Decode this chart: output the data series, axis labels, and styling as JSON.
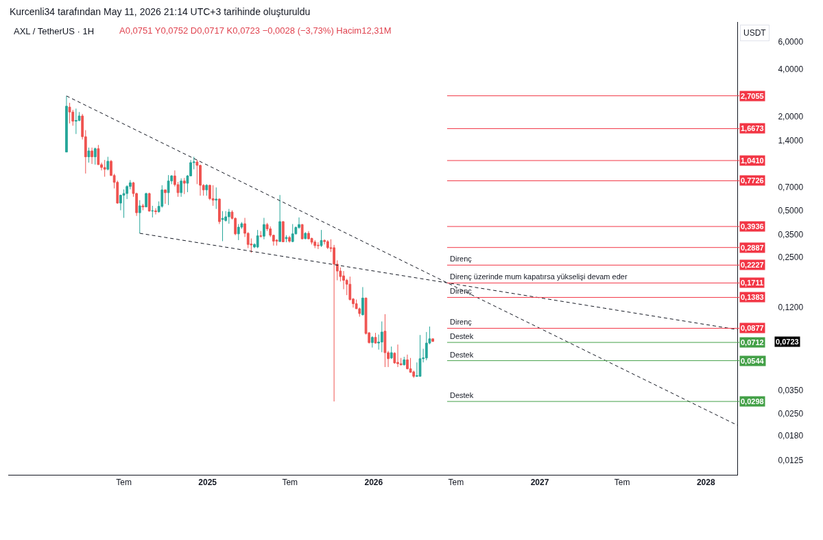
{
  "chart_data": {
    "type": "candlestick",
    "title": "AXL / TetherUS · 1H",
    "subtitle": "A0,0751 Y0,0752 D0,0717 K0,0723 −0,0028 (−3,73%) Hacim12,31M",
    "ylabel": "USDT",
    "x": [
      "2024-02-26",
      "2024-03-04",
      "2024-03-11",
      "2024-03-18",
      "2024-03-25",
      "2024-04-01",
      "2024-04-08",
      "2024-04-15",
      "2024-04-22",
      "2024-04-29",
      "2024-05-06",
      "2024-05-13",
      "2024-05-20",
      "2024-05-27",
      "2024-06-03",
      "2024-06-10",
      "2024-06-17",
      "2024-06-24",
      "2024-07-01",
      "2024-07-08",
      "2024-07-15",
      "2024-07-22",
      "2024-07-29",
      "2024-08-05",
      "2024-08-12",
      "2024-08-19",
      "2024-08-26",
      "2024-09-02",
      "2024-09-09",
      "2024-09-16",
      "2024-09-23",
      "2024-09-30",
      "2024-10-07",
      "2024-10-14",
      "2024-10-21",
      "2024-10-28",
      "2024-11-04",
      "2024-11-11",
      "2024-11-18",
      "2024-11-25",
      "2024-12-02",
      "2024-12-09",
      "2024-12-16",
      "2024-12-23",
      "2024-12-30",
      "2025-01-06",
      "2025-01-13",
      "2025-01-20",
      "2025-01-27",
      "2025-02-03",
      "2025-02-10",
      "2025-02-17",
      "2025-02-24",
      "2025-03-03",
      "2025-03-10",
      "2025-03-17",
      "2025-03-24",
      "2025-03-31",
      "2025-04-07",
      "2025-04-14",
      "2025-04-21",
      "2025-04-28",
      "2025-05-05",
      "2025-05-12",
      "2025-05-19",
      "2025-05-26",
      "2025-06-02",
      "2025-06-09",
      "2025-06-16",
      "2025-06-23",
      "2025-06-30",
      "2025-07-07",
      "2025-07-14",
      "2025-07-21",
      "2025-07-28",
      "2025-08-04",
      "2025-08-11",
      "2025-08-18",
      "2025-08-25",
      "2025-09-01",
      "2025-09-08",
      "2025-09-15",
      "2025-09-22",
      "2025-09-29",
      "2025-10-06",
      "2025-10-13",
      "2025-10-20",
      "2025-10-27",
      "2025-11-03",
      "2025-11-10",
      "2025-11-17",
      "2025-11-24",
      "2025-12-01",
      "2025-12-08",
      "2025-12-15",
      "2025-12-22",
      "2025-12-29",
      "2026-01-05",
      "2026-01-12",
      "2026-01-19",
      "2026-01-26",
      "2026-02-02",
      "2026-02-09",
      "2026-02-16",
      "2026-02-23",
      "2026-03-02",
      "2026-03-09",
      "2026-03-16",
      "2026-03-23",
      "2026-03-30",
      "2026-04-06",
      "2026-04-13",
      "2026-04-20",
      "2026-04-27",
      "2026-05-04",
      "2026-05-11"
    ],
    "ohlc": [
      [
        1.18,
        2.7,
        1.18,
        2.32
      ],
      [
        2.29,
        2.44,
        1.8,
        2.13
      ],
      [
        2.13,
        2.2,
        1.74,
        1.86
      ],
      [
        1.86,
        2.24,
        1.54,
        1.88
      ],
      [
        1.88,
        2.13,
        1.86,
        2.01
      ],
      [
        2.01,
        2.07,
        1.42,
        1.48
      ],
      [
        1.48,
        1.63,
        0.86,
        1.1
      ],
      [
        1.1,
        1.26,
        1.01,
        1.2
      ],
      [
        1.2,
        1.26,
        0.99,
        1.1
      ],
      [
        1.1,
        1.26,
        0.98,
        1.24
      ],
      [
        1.24,
        1.31,
        0.98,
        0.98
      ],
      [
        0.98,
        1.01,
        0.9,
        0.94
      ],
      [
        0.94,
        1.05,
        0.82,
        0.915
      ],
      [
        0.915,
        1.1,
        0.9,
        1.03
      ],
      [
        1.03,
        1.05,
        0.83,
        0.835
      ],
      [
        0.835,
        0.857,
        0.69,
        0.755
      ],
      [
        0.755,
        0.774,
        0.55,
        0.556
      ],
      [
        0.556,
        0.63,
        0.5,
        0.624
      ],
      [
        0.624,
        0.68,
        0.447,
        0.64
      ],
      [
        0.64,
        0.723,
        0.59,
        0.71
      ],
      [
        0.71,
        0.78,
        0.68,
        0.75
      ],
      [
        0.75,
        0.76,
        0.61,
        0.64
      ],
      [
        0.64,
        0.648,
        0.46,
        0.482
      ],
      [
        0.482,
        0.58,
        0.356,
        0.534
      ],
      [
        0.534,
        0.55,
        0.5,
        0.525
      ],
      [
        0.525,
        0.648,
        0.525,
        0.64
      ],
      [
        0.64,
        0.648,
        0.49,
        0.494
      ],
      [
        0.494,
        0.534,
        0.45,
        0.496
      ],
      [
        0.496,
        0.515,
        0.47,
        0.49
      ],
      [
        0.49,
        0.57,
        0.482,
        0.53
      ],
      [
        0.53,
        0.723,
        0.52,
        0.675
      ],
      [
        0.675,
        0.68,
        0.55,
        0.648
      ],
      [
        0.648,
        0.84,
        0.54,
        0.77
      ],
      [
        0.77,
        0.84,
        0.735,
        0.83
      ],
      [
        0.83,
        0.9,
        0.71,
        0.73
      ],
      [
        0.73,
        0.76,
        0.61,
        0.648
      ],
      [
        0.648,
        0.8,
        0.61,
        0.77
      ],
      [
        0.77,
        0.805,
        0.635,
        0.745
      ],
      [
        0.745,
        0.84,
        0.653,
        0.83
      ],
      [
        0.83,
        1.05,
        0.83,
        1.01
      ],
      [
        1.01,
        1.1,
        0.915,
        1.02
      ],
      [
        1.02,
        1.05,
        0.735,
        0.97
      ],
      [
        0.97,
        0.98,
        0.62,
        0.723
      ],
      [
        0.723,
        0.735,
        0.62,
        0.675
      ],
      [
        0.675,
        0.735,
        0.62,
        0.723
      ],
      [
        0.723,
        0.73,
        0.58,
        0.594
      ],
      [
        0.594,
        0.723,
        0.534,
        0.58
      ],
      [
        0.58,
        0.7,
        0.51,
        0.59
      ],
      [
        0.59,
        0.595,
        0.408,
        0.423
      ],
      [
        0.436,
        0.494,
        0.317,
        0.444
      ],
      [
        0.43,
        0.494,
        0.423,
        0.454
      ],
      [
        0.454,
        0.51,
        0.41,
        0.487
      ],
      [
        0.487,
        0.5,
        0.436,
        0.444
      ],
      [
        0.444,
        0.45,
        0.346,
        0.353
      ],
      [
        0.353,
        0.408,
        0.322,
        0.39
      ],
      [
        0.39,
        0.42,
        0.38,
        0.41
      ],
      [
        0.41,
        0.447,
        0.337,
        0.356
      ],
      [
        0.356,
        0.362,
        0.286,
        0.302
      ],
      [
        0.304,
        0.33,
        0.267,
        0.3
      ],
      [
        0.291,
        0.307,
        0.286,
        0.302
      ],
      [
        0.291,
        0.374,
        0.286,
        0.343
      ],
      [
        0.343,
        0.368,
        0.334,
        0.341
      ],
      [
        0.341,
        0.447,
        0.326,
        0.405
      ],
      [
        0.405,
        0.415,
        0.368,
        0.38
      ],
      [
        0.38,
        0.394,
        0.337,
        0.346
      ],
      [
        0.346,
        0.348,
        0.297,
        0.317
      ],
      [
        0.322,
        0.326,
        0.297,
        0.317
      ],
      [
        0.315,
        0.626,
        0.315,
        0.423
      ],
      [
        0.423,
        0.425,
        0.314,
        0.314
      ],
      [
        0.329,
        0.346,
        0.312,
        0.335
      ],
      [
        0.335,
        0.343,
        0.31,
        0.317
      ],
      [
        0.315,
        0.408,
        0.312,
        0.353
      ],
      [
        0.353,
        0.394,
        0.35,
        0.388
      ],
      [
        0.388,
        0.45,
        0.38,
        0.405
      ],
      [
        0.405,
        0.408,
        0.326,
        0.328
      ],
      [
        0.329,
        0.362,
        0.326,
        0.356
      ],
      [
        0.356,
        0.368,
        0.326,
        0.328
      ],
      [
        0.33,
        0.334,
        0.302,
        0.312
      ],
      [
        0.313,
        0.322,
        0.286,
        0.297
      ],
      [
        0.299,
        0.312,
        0.282,
        0.297
      ],
      [
        0.297,
        0.374,
        0.291,
        0.32
      ],
      [
        0.32,
        0.326,
        0.302,
        0.315
      ],
      [
        0.315,
        0.322,
        0.282,
        0.288
      ],
      [
        0.288,
        0.326,
        0.27,
        0.285
      ],
      [
        0.288,
        0.3,
        0.0298,
        0.226
      ],
      [
        0.226,
        0.239,
        0.178,
        0.204
      ],
      [
        0.204,
        0.215,
        0.175,
        0.188
      ],
      [
        0.19,
        0.204,
        0.156,
        0.178
      ],
      [
        0.178,
        0.182,
        0.143,
        0.168
      ],
      [
        0.168,
        0.188,
        0.132,
        0.134
      ],
      [
        0.135,
        0.137,
        0.119,
        0.126
      ],
      [
        0.126,
        0.134,
        0.117,
        0.117
      ],
      [
        0.117,
        0.119,
        0.104,
        0.109
      ],
      [
        0.107,
        0.161,
        0.106,
        0.137
      ],
      [
        0.137,
        0.138,
        0.08,
        0.0812
      ],
      [
        0.082,
        0.083,
        0.07,
        0.071
      ],
      [
        0.071,
        0.078,
        0.066,
        0.0767
      ],
      [
        0.0767,
        0.082,
        0.07,
        0.0705
      ],
      [
        0.0705,
        0.08,
        0.064,
        0.0716
      ],
      [
        0.0716,
        0.097,
        0.0616,
        0.083
      ],
      [
        0.084,
        0.108,
        0.0495,
        0.0612
      ],
      [
        0.0612,
        0.0628,
        0.0495,
        0.056
      ],
      [
        0.0566,
        0.067,
        0.0557,
        0.0612
      ],
      [
        0.0607,
        0.0616,
        0.052,
        0.0526
      ],
      [
        0.053,
        0.069,
        0.0495,
        0.052
      ],
      [
        0.052,
        0.0566,
        0.0506,
        0.0512
      ],
      [
        0.0512,
        0.0576,
        0.0506,
        0.0551
      ],
      [
        0.0551,
        0.0595,
        0.0478,
        0.0483
      ],
      [
        0.0483,
        0.0566,
        0.0455,
        0.0458
      ],
      [
        0.0461,
        0.047,
        0.0422,
        0.0432
      ],
      [
        0.0432,
        0.053,
        0.0428,
        0.0436
      ],
      [
        0.0432,
        0.0794,
        0.0432,
        0.056
      ],
      [
        0.056,
        0.0648,
        0.053,
        0.0566
      ],
      [
        0.0566,
        0.083,
        0.0547,
        0.0705
      ],
      [
        0.0705,
        0.09,
        0.0693,
        0.0751
      ],
      [
        0.0751,
        0.0752,
        0.0717,
        0.0723
      ]
    ],
    "colors": [
      "#26a69a",
      "#ef5350",
      "#ef5350",
      "#26a69a",
      "#26a69a",
      "#ef5350",
      "#ef5350",
      "#26a69a",
      "#ef5350",
      "#26a69a",
      "#ef5350",
      "#ef5350",
      "#ef5350",
      "#26a69a",
      "#ef5350",
      "#ef5350",
      "#ef5350",
      "#26a69a",
      "#26a69a",
      "#26a69a",
      "#26a69a",
      "#ef5350",
      "#ef5350",
      "#26a69a",
      "#ef5350",
      "#26a69a",
      "#ef5350",
      "#26a69a",
      "#ef5350",
      "#26a69a",
      "#26a69a",
      "#ef5350",
      "#26a69a",
      "#26a69a",
      "#ef5350",
      "#ef5350",
      "#26a69a",
      "#ef5350",
      "#26a69a",
      "#26a69a",
      "#26a69a",
      "#ef5350",
      "#ef5350",
      "#ef5350",
      "#26a69a",
      "#ef5350",
      "#ef5350",
      "#26a69a",
      "#ef5350",
      "#26a69a",
      "#26a69a",
      "#26a69a",
      "#ef5350",
      "#ef5350",
      "#26a69a",
      "#26a69a",
      "#ef5350",
      "#ef5350",
      "#ef5350",
      "#26a69a",
      "#26a69a",
      "#ef5350",
      "#26a69a",
      "#ef5350",
      "#ef5350",
      "#ef5350",
      "#ef5350",
      "#26a69a",
      "#ef5350",
      "#26a69a",
      "#ef5350",
      "#26a69a",
      "#26a69a",
      "#26a69a",
      "#ef5350",
      "#26a69a",
      "#ef5350",
      "#ef5350",
      "#ef5350",
      "#ef5350",
      "#26a69a",
      "#ef5350",
      "#ef5350",
      "#ef5350",
      "#ef5350",
      "#ef5350",
      "#ef5350",
      "#ef5350",
      "#ef5350",
      "#ef5350",
      "#ef5350",
      "#ef5350",
      "#ef5350",
      "#26a69a",
      "#ef5350",
      "#ef5350",
      "#26a69a",
      "#ef5350",
      "#26a69a",
      "#26a69a",
      "#ef5350",
      "#ef5350",
      "#26a69a",
      "#ef5350",
      "#ef5350",
      "#ef5350",
      "#26a69a",
      "#ef5350",
      "#ef5350",
      "#ef5350",
      "#26a69a",
      "#26a69a",
      "#26a69a",
      "#26a69a",
      "#26a69a",
      "#ef5350"
    ],
    "series": [
      {
        "type": "line",
        "x": [
          "2024-02-26",
          "2028-03-10"
        ],
        "values": [
          2.7,
          0.021
        ],
        "color": "#131722",
        "line_style": "dashed"
      },
      {
        "type": "line",
        "x": [
          "2024-08-05",
          "2028-03-10"
        ],
        "values": [
          0.356,
          0.086
        ],
        "color": "#131722",
        "line_style": "dashed"
      }
    ],
    "log": "y",
    "xlim": [
      "2023-10-21",
      "2028-03-10"
    ],
    "ylim": [
      0.0101,
      8.04
    ],
    "xticks": [
      {
        "value": "2024-07-01",
        "label": "Tem"
      },
      "2025",
      {
        "value": "2025-07-01",
        "label": "Tem"
      },
      "2026",
      {
        "value": "2026-07-01",
        "label": "Tem"
      },
      "2027",
      {
        "value": "2027-07-01",
        "label": "Tem"
      },
      "2028"
    ],
    "yticks": [
      {
        "value": 6,
        "label": "6,0000"
      },
      {
        "value": 4,
        "label": "4,0000"
      },
      {
        "value": 2,
        "label": "2,0000"
      },
      {
        "value": 1.4,
        "label": "1,4000"
      },
      {
        "value": 0.7,
        "label": "0,7000"
      },
      {
        "value": 0.5,
        "label": "0,5000"
      },
      {
        "value": 0.35,
        "label": "0,3500"
      },
      {
        "value": 0.25,
        "label": "0,2500"
      },
      {
        "value": 0.12,
        "label": "0,1200"
      },
      {
        "value": 0.035,
        "label": "0,0350"
      },
      {
        "value": 0.025,
        "label": "0,0250"
      },
      {
        "value": 0.018,
        "label": "0,0180"
      },
      {
        "value": 0.0125,
        "label": "0,0125"
      }
    ],
    "ref_lines": [
      {
        "axis": "y",
        "value": 2.7055,
        "label": "2,7055",
        "color": "#f23645"
      },
      {
        "axis": "y",
        "value": 1.6673,
        "label": "1,6673",
        "color": "#f23645"
      },
      {
        "axis": "y",
        "value": 1.041,
        "label": "1,0410",
        "color": "#f23645"
      },
      {
        "axis": "y",
        "value": 0.7726,
        "label": "0,7726",
        "color": "#f23645"
      },
      {
        "axis": "y",
        "value": 0.3936,
        "label": "0,3936",
        "color": "#f23645"
      },
      {
        "axis": "y",
        "value": 0.2887,
        "label": "0,2887",
        "color": "#f23645"
      },
      {
        "axis": "y",
        "value": 0.2227,
        "label": "0,2227",
        "color": "#f23645"
      },
      {
        "axis": "y",
        "value": 0.1711,
        "label": "0,1711",
        "color": "#f23645"
      },
      {
        "axis": "y",
        "value": 0.1383,
        "label": "0,1383",
        "color": "#f23645"
      },
      {
        "axis": "y",
        "value": 0.0877,
        "label": "0,0877",
        "color": "#f23645"
      },
      {
        "axis": "y",
        "value": 0.0712,
        "label": "0,0712",
        "color": "#43a047"
      },
      {
        "axis": "y",
        "value": 0.0544,
        "label": "0,0544",
        "color": "#43a047"
      },
      {
        "axis": "y",
        "value": 0.0298,
        "label": "0,0298",
        "color": "#43a047"
      }
    ],
    "annotations": [
      "Kurcenli34 tarafından May 11, 2026 21:14 UTC+3 tarihinde oluşturuldu",
      {
        "text": "Direnç",
        "x": "2026-06-15",
        "y": 0.2227
      },
      {
        "text": "Direnç üzerinde mum kapatırsa yükselişi devam eder",
        "x": "2026-06-15",
        "y": 0.1711
      },
      {
        "text": "Direnç",
        "x": "2026-06-15",
        "y": 0.1383
      },
      {
        "text": "Direnç",
        "x": "2026-06-15",
        "y": 0.0877
      },
      {
        "text": "Destek",
        "x": "2026-06-15",
        "y": 0.0712
      },
      {
        "text": "Destek",
        "x": "2026-06-15",
        "y": 0.0544
      },
      {
        "text": "Destek",
        "x": "2026-06-15",
        "y": 0.0298
      },
      "0,0723"
    ]
  }
}
